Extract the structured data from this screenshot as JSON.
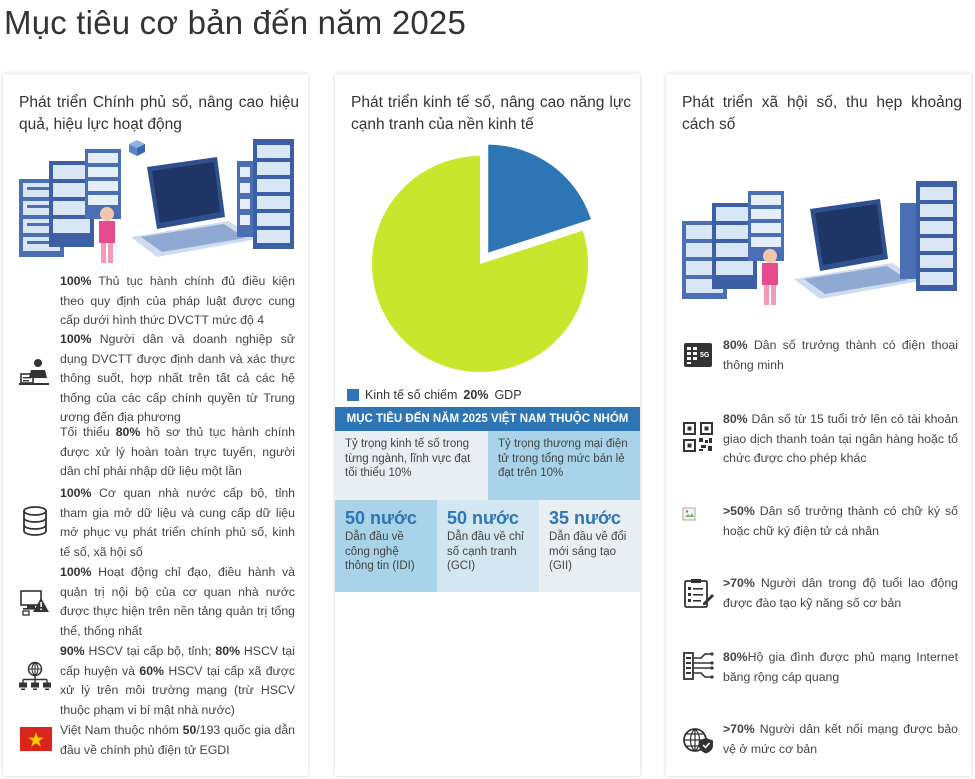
{
  "page_title": "Mục tiêu cơ bản đến năm 2025",
  "col1": {
    "title": "Phát triển Chính phủ số, nâng cao hiệu quả, hiệu lực hoạt động",
    "items": [
      {
        "strong": "100%",
        "text": " Thủ tục hành chính đủ điều kiện theo quy định của pháp luật được cung cấp dưới hình thức DVCTT mức độ 4"
      },
      {
        "strong": "100%",
        "text": " Người dân và doanh nghiệp sử dụng DVCTT được định danh và xác thực thông suốt, hợp nhất trên tất cả các hệ thống của các cấp chính quyền từ Trung ương đến địa phương"
      },
      {
        "pre": "Tối thiểu ",
        "strong": "80%",
        "text": " hồ sơ thủ tục hành chính được xử lý hoàn toàn trực tuyến, người dân chỉ phải nhập dữ liệu một lần"
      },
      {
        "strong": "100%",
        "text": " Cơ quan nhà nước cấp bộ, tỉnh tham gia mở dữ liệu và cung cấp dữ liệu mở phục vụ phát triển chính phủ số, kinh tế số, xã hội số"
      },
      {
        "strong": "100%",
        "text": " Hoạt động chỉ đạo, điều hành và quản trị nội bộ của cơ quan nhà nước được thực hiện trên nền tảng quản trị tổng thể, thống nhất"
      },
      {
        "s1": "90%",
        "t1": " HSCV tại cấp bộ, tỉnh; ",
        "s2": "80%",
        "t2": " HSCV tại cấp huyện và ",
        "s3": "60%",
        "t3": " HSCV tại cấp xã được xử lý trên môi trường mạng (trừ HSCV thuộc phạm vi bí mật nhà nước)"
      },
      {
        "pre": "Việt Nam thuộc nhóm ",
        "strong": "50",
        "text": "/193 quốc gia dẫn đầu về chính phủ điện tử EGDI"
      }
    ],
    "icons": [
      "server-laptop-illustration",
      "person-computer-icon",
      "database-icon",
      "warning-computer-icon",
      "network-globe-icon",
      "vietnam-flag-icon"
    ]
  },
  "col2": {
    "title": "Phát triển kinh tế số, nâng cao năng lực cạnh tranh của nền kinh tế",
    "chart_data": {
      "type": "pie",
      "slices": [
        {
          "label": "Kinh tế số chiếm 20% GDP",
          "value": 20,
          "color": "#2e75b6"
        },
        {
          "label": "",
          "value": 80,
          "color": "#c8e62b"
        }
      ]
    },
    "legend": {
      "pre": "Kinh tế số chiếm",
      "strong": "20%",
      "post": "GDP"
    },
    "banner": "MỤC TIÊU ĐẾN NĂM 2025 VIỆT NAM THUỘC NHÓM",
    "share_left": {
      "text": "Tỷ trọng kinh tế số trong từng ngành, lĩnh vực đạt tối thiểu",
      "value": "10%"
    },
    "share_right": {
      "text": "Tỷ trọng thương mại điện tử trong tổng mức bán lẻ đạt trên",
      "value": "10%"
    },
    "rank_items": [
      {
        "value": "50 nước",
        "text": "Dẫn đầu về công nghệ thông tin (IDI)"
      },
      {
        "value": "50 nước",
        "text": "Dẫn đầu về chỉ số cạnh tranh (GCI)"
      },
      {
        "value": "35 nước",
        "text": "Dẫn đầu về đổi mới sáng tạo (GII)"
      }
    ],
    "colors": {
      "accent": "#2e75b6",
      "pie_green": "#c8e62b",
      "light_blue": "#a9d3e8",
      "pale_blue": "#d2e7f1",
      "pale_grey": "#e8eef1"
    }
  },
  "col3": {
    "title": "Phát triển xã hội số, thu hẹp khoảng cách số",
    "items": [
      {
        "strong": "80%",
        "text": " Dân số trưởng thành có điện thoại thông minh",
        "icon": "smartphone-5g-icon"
      },
      {
        "strong": "80%",
        "text": " Dân số từ 15 tuổi trở lên có tài khoản giao dịch thanh toán tại ngân hàng hoặc tổ chức được cho phép khác",
        "icon": "qr-code-icon"
      },
      {
        "strong": ">50%",
        "text": " Dân số trưởng thành có chữ ký số hoặc chữ ký điện tử cá nhân",
        "icon": "broken-image-icon"
      },
      {
        "strong": ">70%",
        "text": " Người dân trong độ tuổi lao động được đào tạo kỹ năng số cơ bản",
        "icon": "checklist-icon"
      },
      {
        "strong": "80%",
        "text": "Hộ gia đình được phủ mạng Internet băng rộng cáp quang",
        "icon": "fiber-optic-icon"
      },
      {
        "strong": ">70%",
        "text": " Người dân kết nối mạng được bảo vệ ở mức cơ bản",
        "icon": "globe-shield-icon"
      }
    ]
  }
}
